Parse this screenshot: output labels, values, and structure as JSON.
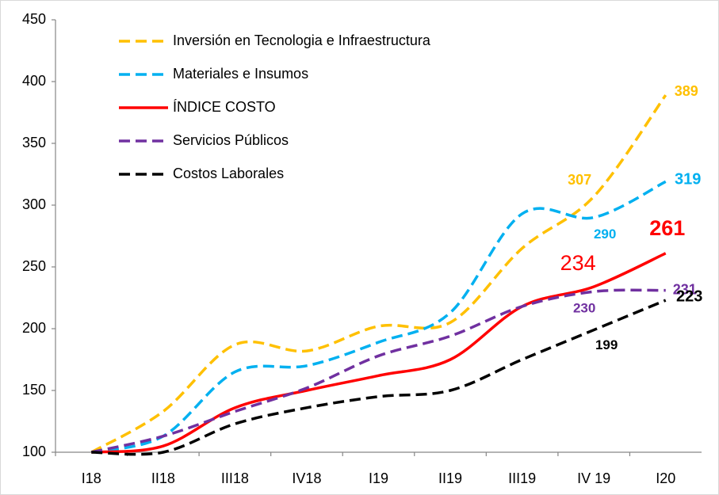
{
  "chart_data": {
    "type": "line",
    "categories": [
      "I18",
      "II18",
      "III18",
      "IV18",
      "I19",
      "II19",
      "III19",
      "IV 19",
      "I20"
    ],
    "ylim": [
      100,
      450
    ],
    "yticks": [
      100,
      150,
      200,
      250,
      300,
      350,
      400,
      450
    ],
    "legend": "upper left",
    "grid": false,
    "series": [
      {
        "name": "Inversión en Tecnologia e Infraestructura",
        "color": "#FFC000",
        "dashed": true,
        "values": [
          100,
          133,
          187,
          182,
          202,
          205,
          265,
          307,
          389
        ],
        "value_labels": [
          null,
          null,
          null,
          null,
          null,
          null,
          null,
          "307",
          "389"
        ]
      },
      {
        "name": "Materiales e Insumos",
        "color": "#00B0F0",
        "dashed": true,
        "values": [
          100,
          113,
          165,
          170,
          189,
          213,
          293,
          290,
          319
        ],
        "value_labels": [
          null,
          null,
          null,
          null,
          null,
          null,
          null,
          "290",
          "319"
        ]
      },
      {
        "name": "ÍNDICE COSTO",
        "color": "#FF0000",
        "dashed": false,
        "values": [
          100,
          105,
          136,
          150,
          162,
          175,
          218,
          234,
          261
        ],
        "value_labels": [
          null,
          null,
          null,
          null,
          null,
          null,
          null,
          "234",
          "261"
        ]
      },
      {
        "name": "Servicios Públicos",
        "color": "#7030A0",
        "dashed": true,
        "values": [
          100,
          113,
          133,
          152,
          178,
          194,
          218,
          230,
          231
        ],
        "value_labels": [
          null,
          null,
          null,
          null,
          null,
          null,
          null,
          "230",
          "231"
        ]
      },
      {
        "name": "Costos Laborales",
        "color": "#000000",
        "dashed": true,
        "values": [
          100,
          100,
          123,
          136,
          145,
          150,
          175,
          199,
          223
        ],
        "value_labels": [
          null,
          null,
          null,
          null,
          null,
          null,
          null,
          "199",
          "223"
        ]
      }
    ]
  }
}
